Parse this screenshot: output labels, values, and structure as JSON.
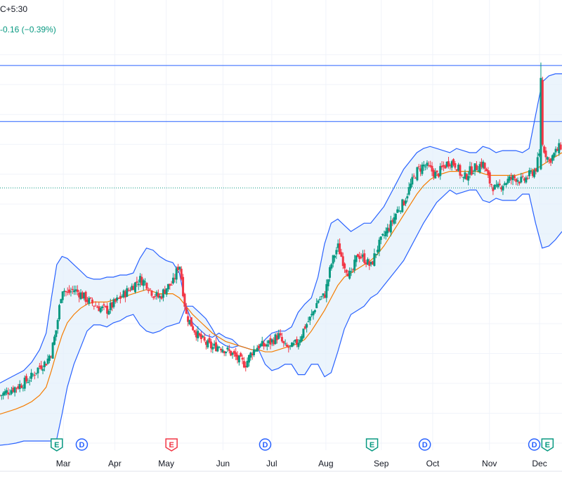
{
  "header": {
    "timezone_fragment": "C+5:30",
    "change_text": "-0.16 (−0.39%)"
  },
  "colors": {
    "up": "#089981",
    "down": "#f23645",
    "band": "#2962ff",
    "band_fill": "#e3f0fb",
    "basis": "#f57c00",
    "grid": "#f0f3fa",
    "hline": "#2962ff",
    "price_line": "#089981"
  },
  "chart_data": {
    "type": "candlestick",
    "title": "",
    "xlabel": "",
    "ylabel": "",
    "ylim": [
      0,
      100
    ],
    "y_units": "relative price level (no price axis visible)",
    "month_ticks": [
      {
        "label": "Mar",
        "x": 9.8
      },
      {
        "label": "Apr",
        "x": 13.7
      },
      {
        "label": "May",
        "x": 17.6
      },
      {
        "label": "Jun",
        "x": 21.9
      },
      {
        "label": "Jul",
        "x": 25.6
      },
      {
        "label": "Aug",
        "x": 29.7
      },
      {
        "label": "Sep",
        "x": 33.9
      },
      {
        "label": "Oct",
        "x": 37.8
      },
      {
        "label": "Nov",
        "x": 42.1
      },
      {
        "label": "Dec",
        "x": 45.9
      }
    ],
    "xlim": [
      5,
      47.6
    ],
    "horizontal_lines": [
      91,
      77.5
    ],
    "last_price_line": 61.5,
    "events": [
      {
        "letter": "E",
        "x": 9.3,
        "color": "#089981"
      },
      {
        "letter": "D",
        "x": 11.2,
        "color": "#2962ff"
      },
      {
        "letter": "E",
        "x": 18.0,
        "color": "#f23645"
      },
      {
        "letter": "D",
        "x": 25.1,
        "color": "#2962ff"
      },
      {
        "letter": "E",
        "x": 33.2,
        "color": "#089981"
      },
      {
        "letter": "D",
        "x": 37.2,
        "color": "#2962ff"
      },
      {
        "letter": "D",
        "x": 45.5,
        "color": "#2962ff"
      },
      {
        "letter": "E",
        "x": 46.5,
        "color": "#089981"
      }
    ],
    "series": [
      {
        "kind": "close",
        "x": [
          5.0,
          5.6,
          6.2,
          6.8,
          7.4,
          8.0,
          8.5,
          8.9,
          9.3,
          9.7,
          10.1,
          10.6,
          11.1,
          11.6,
          12.1,
          12.6,
          13.1,
          13.6,
          14.1,
          14.6,
          15.1,
          15.6,
          16.1,
          16.6,
          17.1,
          17.6,
          18.1,
          18.6,
          19.1,
          19.6,
          20.1,
          20.6,
          21.1,
          21.6,
          22.1,
          22.6,
          23.1,
          23.6,
          24.1,
          24.6,
          25.1,
          25.6,
          26.1,
          26.6,
          27.1,
          27.6,
          28.1,
          28.6,
          29.1,
          29.6,
          30.1,
          30.6,
          31.1,
          31.6,
          32.1,
          32.6,
          33.1,
          33.6,
          34.1,
          34.6,
          35.1,
          35.6,
          36.1,
          36.6,
          37.1,
          37.6,
          38.1,
          38.6,
          39.1,
          39.6,
          40.1,
          40.6,
          41.1,
          41.6,
          42.1,
          42.6,
          43.1,
          43.6,
          44.1,
          44.6,
          45.1,
          45.6,
          46.1,
          46.6,
          47.1,
          47.6
        ],
        "values": [
          11.5,
          12.5,
          13.5,
          14.5,
          16.0,
          18.5,
          19.5,
          22.0,
          28.0,
          37.5,
          36.0,
          37.0,
          36.0,
          34.5,
          33.5,
          32.5,
          32.0,
          33.5,
          35.0,
          36.5,
          38.0,
          39.5,
          38.5,
          36.0,
          35.0,
          37.5,
          38.5,
          43.5,
          31.0,
          28.0,
          25.5,
          24.0,
          23.0,
          23.5,
          22.5,
          21.5,
          20.0,
          19.0,
          22.0,
          23.5,
          23.5,
          24.5,
          26.0,
          23.0,
          23.0,
          24.5,
          28.0,
          30.5,
          34.5,
          35.5,
          43.0,
          47.5,
          43.0,
          40.0,
          45.5,
          44.5,
          42.5,
          47.0,
          50.0,
          52.5,
          56.0,
          58.0,
          62.0,
          65.5,
          67.0,
          66.0,
          64.5,
          66.5,
          68.0,
          67.0,
          63.5,
          65.5,
          66.5,
          67.5,
          63.0,
          61.0,
          62.5,
          63.5,
          64.0,
          63.0,
          64.5,
          66.0,
          72.0,
          68.0,
          70.0,
          72.0
        ]
      },
      {
        "kind": "upper_band",
        "values": [
          14.5,
          15.5,
          16.5,
          17.5,
          19.5,
          22.5,
          26.5,
          35.0,
          43.0,
          45.0,
          44.5,
          43.0,
          41.5,
          40.0,
          39.5,
          39.5,
          40.0,
          40.0,
          40.5,
          40.5,
          41.0,
          44.5,
          47.0,
          46.5,
          45.0,
          44.0,
          43.5,
          41.0,
          33.0,
          29.0,
          27.5,
          26.0,
          25.5,
          26.5,
          25.5,
          25.0,
          23.5,
          23.0,
          22.5,
          22.5,
          25.0,
          26.5,
          27.0,
          27.0,
          28.0,
          31.5,
          33.5,
          35.0,
          40.0,
          48.0,
          53.0,
          54.0,
          52.5,
          51.0,
          52.0,
          53.0,
          53.0,
          55.0,
          57.0,
          60.0,
          63.0,
          66.0,
          68.0,
          70.0,
          71.0,
          71.5,
          71.0,
          70.5,
          70.0,
          71.0,
          70.5,
          70.0,
          70.0,
          71.5,
          71.0,
          70.0,
          70.5,
          70.5,
          70.5,
          70.0,
          71.0,
          79.0,
          87.0,
          88.5,
          89.0,
          89.0
        ]
      },
      {
        "kind": "basis",
        "values": [
          7.0,
          7.6,
          8.2,
          9.0,
          10.0,
          11.5,
          13.5,
          17.5,
          22.0,
          26.0,
          29.0,
          31.0,
          32.5,
          33.5,
          34.0,
          34.0,
          34.0,
          34.5,
          35.0,
          35.5,
          36.0,
          36.5,
          37.0,
          36.5,
          36.0,
          36.0,
          36.0,
          35.0,
          33.0,
          31.0,
          29.5,
          28.0,
          26.5,
          25.5,
          24.5,
          24.0,
          23.5,
          23.0,
          22.5,
          22.5,
          22.0,
          22.0,
          22.5,
          23.0,
          23.5,
          24.0,
          25.0,
          27.0,
          29.5,
          32.0,
          35.0,
          38.0,
          40.0,
          41.0,
          42.0,
          43.0,
          44.0,
          45.5,
          47.5,
          50.0,
          52.5,
          55.0,
          57.5,
          60.0,
          62.0,
          63.5,
          64.5,
          65.0,
          65.5,
          65.5,
          65.5,
          65.5,
          65.5,
          65.0,
          64.5,
          64.5,
          64.5,
          64.5,
          64.5,
          65.0,
          65.5,
          66.0,
          67.0,
          68.0,
          69.0,
          70.0
        ]
      },
      {
        "kind": "lower_band",
        "values": [
          -0.5,
          -0.3,
          0.0,
          0.5,
          0.5,
          0.5,
          0.5,
          0.5,
          1.0,
          7.0,
          13.5,
          19.0,
          23.0,
          27.0,
          28.5,
          28.5,
          28.0,
          29.0,
          29.5,
          30.5,
          31.0,
          28.5,
          27.0,
          26.5,
          27.0,
          28.0,
          28.5,
          29.0,
          33.0,
          33.0,
          31.5,
          30.0,
          27.5,
          24.5,
          23.5,
          23.0,
          23.5,
          23.0,
          22.5,
          22.5,
          19.0,
          17.5,
          18.0,
          19.0,
          19.0,
          16.5,
          16.5,
          19.0,
          19.0,
          16.0,
          17.0,
          22.0,
          27.5,
          31.0,
          32.0,
          33.0,
          35.0,
          36.0,
          38.0,
          40.0,
          42.0,
          44.0,
          47.0,
          50.0,
          53.0,
          55.5,
          58.0,
          59.5,
          61.0,
          60.0,
          60.5,
          61.0,
          61.0,
          58.5,
          58.0,
          59.0,
          58.5,
          58.5,
          58.5,
          60.0,
          60.0,
          53.0,
          47.0,
          47.5,
          49.0,
          51.0
        ]
      }
    ]
  }
}
